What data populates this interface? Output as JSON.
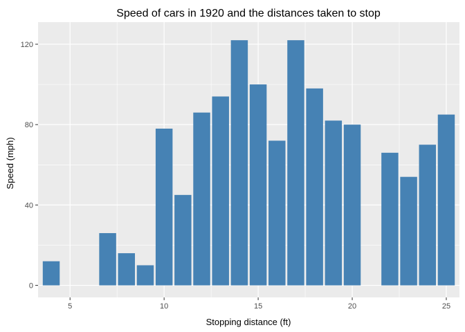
{
  "chart_data": {
    "type": "bar",
    "title": "Speed of cars in 1920 and the distances taken to stop",
    "xlabel": "Stopping distance (ft)",
    "ylabel": "Speed (mph)",
    "xlim": [
      3.3,
      25.7
    ],
    "ylim": [
      -6,
      131
    ],
    "x_ticks": [
      5,
      10,
      15,
      20,
      25
    ],
    "y_ticks": [
      0,
      40,
      80,
      120
    ],
    "grid": true,
    "legend": "none",
    "bar_color": "#4682B4",
    "panel_color": "#EBEBEB",
    "x": [
      4,
      7,
      8,
      9,
      10,
      11,
      12,
      13,
      14,
      15,
      16,
      17,
      18,
      19,
      20,
      22,
      23,
      24,
      25
    ],
    "values": [
      12,
      26,
      16,
      10,
      78,
      45,
      86,
      94,
      122,
      100,
      72,
      122,
      98,
      82,
      80,
      66,
      54,
      70,
      85
    ]
  }
}
